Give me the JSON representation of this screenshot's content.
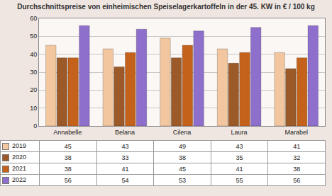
{
  "chart_data": {
    "type": "bar",
    "title": "Durchschnittspreise von einheimischen Speiselagerkartoffeln in der 45. KW in € / 100 kg",
    "categories": [
      "Annabelle",
      "Belana",
      "Cilena",
      "Laura",
      "Marabel"
    ],
    "series": [
      {
        "name": "2019",
        "color": "#f2c7a0",
        "values": [
          45,
          43,
          49,
          43,
          41
        ]
      },
      {
        "name": "2020",
        "color": "#9c5a28",
        "values": [
          38,
          33,
          38,
          35,
          32
        ]
      },
      {
        "name": "2021",
        "color": "#c4621c",
        "values": [
          38,
          41,
          45,
          41,
          38
        ]
      },
      {
        "name": "2022",
        "color": "#8e6fcc",
        "values": [
          56,
          54,
          53,
          55,
          56
        ]
      }
    ],
    "ylim": [
      0,
      60
    ],
    "yticks": [
      0,
      10,
      20,
      30,
      40,
      50,
      60
    ],
    "grid": true,
    "legend": "bottom"
  }
}
